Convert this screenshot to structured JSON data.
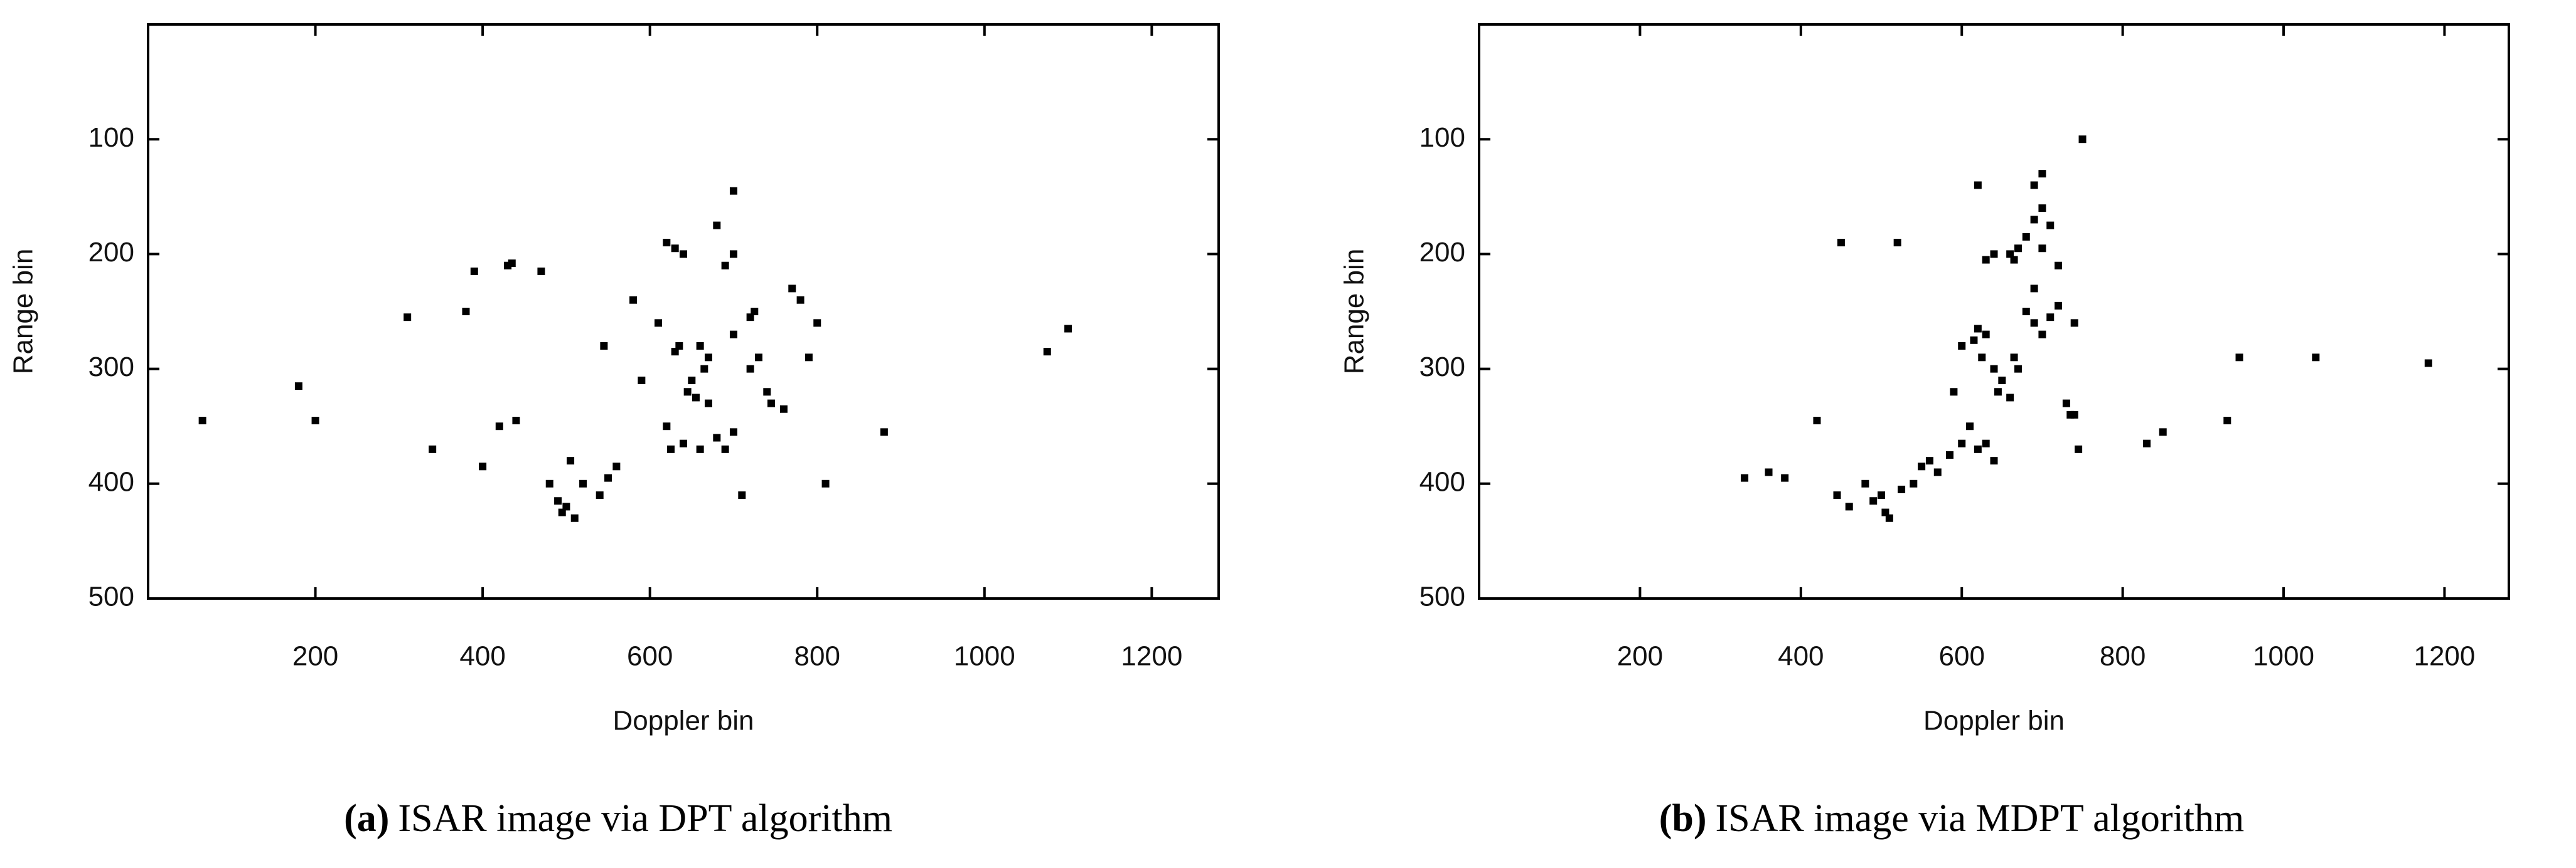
{
  "chart_data": [
    {
      "type": "scatter",
      "xlabel": "Doppler bin",
      "ylabel": "Range bin",
      "caption_label": "(a)",
      "caption": "ISAR image via DPT algorithm",
      "xlim": [
        0,
        1280
      ],
      "ylim": [
        500,
        0
      ],
      "xticks": [
        200,
        400,
        600,
        800,
        1000,
        1200
      ],
      "yticks": [
        100,
        200,
        300,
        400,
        500
      ],
      "color": "#000000",
      "x": [
        65,
        180,
        200,
        310,
        380,
        390,
        430,
        435,
        470,
        340,
        400,
        420,
        440,
        480,
        490,
        495,
        500,
        505,
        510,
        520,
        540,
        550,
        560,
        545,
        590,
        620,
        625,
        630,
        635,
        640,
        645,
        650,
        655,
        660,
        665,
        670,
        680,
        690,
        700,
        710,
        620,
        630,
        640,
        680,
        690,
        700,
        700,
        720,
        725,
        730,
        740,
        745,
        760,
        770,
        800,
        790,
        810,
        780,
        880,
        1075,
        1100,
        660,
        670,
        700,
        720,
        610,
        580
      ],
      "y": [
        345,
        315,
        345,
        255,
        250,
        215,
        210,
        208,
        215,
        370,
        385,
        350,
        345,
        400,
        415,
        425,
        420,
        380,
        430,
        400,
        410,
        395,
        385,
        280,
        310,
        350,
        370,
        285,
        280,
        365,
        320,
        310,
        325,
        370,
        300,
        330,
        360,
        370,
        355,
        410,
        190,
        195,
        200,
        175,
        210,
        200,
        145,
        255,
        250,
        290,
        320,
        330,
        335,
        230,
        260,
        290,
        400,
        240,
        355,
        285,
        265,
        280,
        290,
        270,
        300,
        260,
        240
      ]
    },
    {
      "type": "scatter",
      "xlabel": "Doppler bin",
      "ylabel": "Range bin",
      "caption_label": "(b)",
      "caption": "ISAR image via MDPT algorithm",
      "xlim": [
        0,
        1280
      ],
      "ylim": [
        500,
        0
      ],
      "xticks": [
        200,
        400,
        600,
        800,
        1000,
        1200
      ],
      "yticks": [
        100,
        200,
        300,
        400,
        500
      ],
      "color": "#000000",
      "x": [
        450,
        520,
        330,
        360,
        380,
        420,
        445,
        460,
        480,
        490,
        500,
        505,
        510,
        525,
        540,
        550,
        560,
        570,
        585,
        600,
        610,
        620,
        630,
        640,
        590,
        600,
        615,
        620,
        625,
        630,
        640,
        645,
        650,
        660,
        665,
        670,
        680,
        690,
        700,
        710,
        720,
        730,
        735,
        740,
        660,
        665,
        670,
        680,
        690,
        700,
        710,
        690,
        700,
        720,
        740,
        620,
        640,
        630,
        750,
        830,
        850,
        930,
        945,
        1040,
        1180,
        745,
        690,
        700
      ],
      "y": [
        190,
        190,
        395,
        390,
        395,
        345,
        410,
        420,
        400,
        415,
        410,
        425,
        430,
        405,
        400,
        385,
        380,
        390,
        375,
        365,
        350,
        370,
        365,
        380,
        320,
        280,
        275,
        265,
        290,
        270,
        300,
        320,
        310,
        325,
        290,
        300,
        250,
        260,
        270,
        255,
        245,
        330,
        340,
        340,
        200,
        205,
        195,
        185,
        170,
        160,
        175,
        140,
        130,
        210,
        260,
        140,
        200,
        205,
        100,
        365,
        355,
        345,
        290,
        290,
        295,
        370,
        230,
        195
      ]
    }
  ]
}
